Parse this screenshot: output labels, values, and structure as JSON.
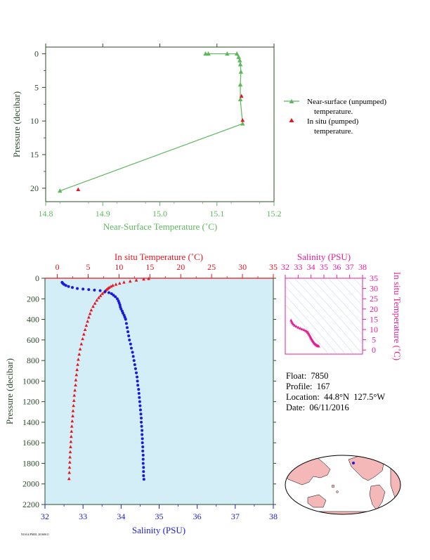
{
  "chart_data": [
    {
      "id": "near-surface",
      "type": "line",
      "xlabel": "Near-Surface Temperature (˚C)",
      "ylabel": "Pressure (decibar)",
      "xlim": [
        14.8,
        15.2
      ],
      "ylim": [
        22,
        -1
      ],
      "x_ticks": [
        "14.8",
        "14.9",
        "15.0",
        "15.1",
        "15.2"
      ],
      "y_ticks": [
        "0",
        "5",
        "10",
        "15",
        "20"
      ],
      "series": [
        {
          "name": "Near-surface (unpumped) temperature.",
          "marker": "triangle",
          "color": "#5cb85c",
          "points": [
            [
              15.08,
              0.0
            ],
            [
              15.085,
              0.0
            ],
            [
              15.118,
              0.0
            ],
            [
              15.135,
              0.0
            ],
            [
              15.138,
              0.5
            ],
            [
              15.14,
              1.0
            ],
            [
              15.141,
              1.6
            ],
            [
              15.142,
              2.7
            ],
            [
              15.141,
              4.6
            ],
            [
              15.141,
              6.8
            ],
            [
              15.145,
              10.4
            ],
            [
              14.825,
              20.4
            ]
          ]
        },
        {
          "name": "In situ (pumped) temperature.",
          "marker": "triangle",
          "color": "#e8141e",
          "points": [
            [
              15.143,
              6.3
            ],
            [
              15.145,
              9.9
            ],
            [
              14.857,
              20.2
            ]
          ]
        }
      ]
    },
    {
      "id": "profile",
      "type": "scatter",
      "x_bottom_label": "Salinity (PSU)",
      "x_top_label": "In situ Temperature (˚C)",
      "ylabel": "Pressure (decibar)",
      "salinity_lim": [
        32,
        38
      ],
      "temperature_lim": [
        -2,
        35
      ],
      "pressure_lim": [
        0,
        2200
      ],
      "salinity_ticks": [
        "32",
        "33",
        "34",
        "35",
        "36",
        "37",
        "38"
      ],
      "temperature_ticks": [
        "0",
        "5",
        "10",
        "15",
        "20",
        "25",
        "30",
        "35"
      ],
      "pressure_ticks": [
        "0",
        "200",
        "400",
        "600",
        "800",
        "1000",
        "1200",
        "1400",
        "1600",
        "1800",
        "2000",
        "2200"
      ],
      "temperature_series": {
        "color": "#e8141e",
        "points": [
          [
            14.8,
            5
          ],
          [
            14.0,
            10
          ],
          [
            12.8,
            20
          ],
          [
            11.8,
            30
          ],
          [
            10.8,
            40
          ],
          [
            10.1,
            50
          ],
          [
            9.5,
            60
          ],
          [
            9.0,
            70
          ],
          [
            8.7,
            80
          ],
          [
            8.4,
            90
          ],
          [
            8.2,
            100
          ],
          [
            8.0,
            110
          ],
          [
            7.8,
            120
          ],
          [
            7.6,
            135
          ],
          [
            7.3,
            150
          ],
          [
            7.0,
            170
          ],
          [
            6.7,
            190
          ],
          [
            6.4,
            215
          ],
          [
            6.1,
            245
          ],
          [
            5.8,
            275
          ],
          [
            5.5,
            310
          ],
          [
            5.3,
            345
          ],
          [
            5.1,
            380
          ],
          [
            4.9,
            420
          ],
          [
            4.7,
            460
          ],
          [
            4.5,
            500
          ],
          [
            4.3,
            545
          ],
          [
            4.1,
            590
          ],
          [
            3.9,
            640
          ],
          [
            3.7,
            690
          ],
          [
            3.55,
            740
          ],
          [
            3.4,
            790
          ],
          [
            3.3,
            840
          ],
          [
            3.2,
            890
          ],
          [
            3.1,
            940
          ],
          [
            3.0,
            990
          ],
          [
            2.95,
            1040
          ],
          [
            2.85,
            1090
          ],
          [
            2.75,
            1140
          ],
          [
            2.7,
            1190
          ],
          [
            2.62,
            1240
          ],
          [
            2.55,
            1290
          ],
          [
            2.5,
            1340
          ],
          [
            2.42,
            1390
          ],
          [
            2.35,
            1440
          ],
          [
            2.3,
            1490
          ],
          [
            2.25,
            1540
          ],
          [
            2.2,
            1590
          ],
          [
            2.15,
            1640
          ],
          [
            2.1,
            1690
          ],
          [
            2.05,
            1740
          ],
          [
            2.02,
            1790
          ],
          [
            1.98,
            1840
          ],
          [
            1.95,
            1890
          ],
          [
            1.9,
            1950
          ]
        ]
      },
      "salinity_series": {
        "color": "#1a1adc",
        "points": [
          [
            32.45,
            40
          ],
          [
            32.47,
            50
          ],
          [
            32.5,
            60
          ],
          [
            32.55,
            70
          ],
          [
            32.62,
            80
          ],
          [
            32.72,
            90
          ],
          [
            32.85,
            100
          ],
          [
            33.0,
            105
          ],
          [
            33.15,
            110
          ],
          [
            33.3,
            115
          ],
          [
            33.45,
            120
          ],
          [
            33.58,
            130
          ],
          [
            33.68,
            140
          ],
          [
            33.75,
            150
          ],
          [
            33.8,
            165
          ],
          [
            33.85,
            180
          ],
          [
            33.9,
            200
          ],
          [
            33.93,
            220
          ],
          [
            33.95,
            240
          ],
          [
            33.97,
            260
          ],
          [
            33.98,
            280
          ],
          [
            34.0,
            300
          ],
          [
            34.03,
            320
          ],
          [
            34.05,
            340
          ],
          [
            34.08,
            360
          ],
          [
            34.1,
            380
          ],
          [
            34.12,
            400
          ],
          [
            34.14,
            440
          ],
          [
            34.16,
            480
          ],
          [
            34.18,
            520
          ],
          [
            34.2,
            560
          ],
          [
            34.22,
            600
          ],
          [
            34.25,
            640
          ],
          [
            34.27,
            680
          ],
          [
            34.3,
            720
          ],
          [
            34.32,
            760
          ],
          [
            34.34,
            800
          ],
          [
            34.36,
            840
          ],
          [
            34.38,
            880
          ],
          [
            34.4,
            920
          ],
          [
            34.42,
            960
          ],
          [
            34.43,
            1000
          ],
          [
            34.44,
            1040
          ],
          [
            34.46,
            1080
          ],
          [
            34.47,
            1120
          ],
          [
            34.48,
            1160
          ],
          [
            34.49,
            1200
          ],
          [
            34.5,
            1240
          ],
          [
            34.51,
            1280
          ],
          [
            34.52,
            1320
          ],
          [
            34.53,
            1360
          ],
          [
            34.53,
            1400
          ],
          [
            34.54,
            1440
          ],
          [
            34.55,
            1480
          ],
          [
            34.55,
            1520
          ],
          [
            34.56,
            1560
          ],
          [
            34.56,
            1600
          ],
          [
            34.57,
            1640
          ],
          [
            34.57,
            1680
          ],
          [
            34.58,
            1720
          ],
          [
            34.58,
            1760
          ],
          [
            34.58,
            1800
          ],
          [
            34.59,
            1840
          ],
          [
            34.59,
            1880
          ],
          [
            34.59,
            1920
          ],
          [
            34.6,
            1955
          ]
        ]
      }
    },
    {
      "id": "ts-diagram",
      "type": "scatter",
      "x_top_label": "Salinity (PSU)",
      "y_right_label": "In situ Temperature (˚C)",
      "xlim": [
        32,
        38
      ],
      "ylim": [
        -2,
        35
      ],
      "x_ticks": [
        "32",
        "33",
        "34",
        "35",
        "36",
        "37",
        "38"
      ],
      "y_ticks": [
        "0",
        "5",
        "10",
        "15",
        "20",
        "25",
        "30",
        "35"
      ],
      "color": "#e61e96",
      "points": [
        [
          32.45,
          14.5
        ],
        [
          32.5,
          13.8
        ],
        [
          32.55,
          13.2
        ],
        [
          32.62,
          12.6
        ],
        [
          32.72,
          12.0
        ],
        [
          32.85,
          11.5
        ],
        [
          33.0,
          11.0
        ],
        [
          33.15,
          10.6
        ],
        [
          33.3,
          10.2
        ],
        [
          33.45,
          9.8
        ],
        [
          33.58,
          9.4
        ],
        [
          33.68,
          9.0
        ],
        [
          33.75,
          8.6
        ],
        [
          33.8,
          8.1
        ],
        [
          33.85,
          7.6
        ],
        [
          33.9,
          7.0
        ],
        [
          33.95,
          6.5
        ],
        [
          33.98,
          6.0
        ],
        [
          34.02,
          5.6
        ],
        [
          34.06,
          5.2
        ],
        [
          34.1,
          4.8
        ],
        [
          34.14,
          4.4
        ],
        [
          34.18,
          4.0
        ],
        [
          34.22,
          3.6
        ],
        [
          34.27,
          3.2
        ],
        [
          34.32,
          2.9
        ],
        [
          34.37,
          2.6
        ],
        [
          34.42,
          2.4
        ],
        [
          34.47,
          2.2
        ],
        [
          34.52,
          2.0
        ],
        [
          34.56,
          1.9
        ],
        [
          34.6,
          1.85
        ]
      ]
    }
  ],
  "float_info": {
    "float_label": "Float:",
    "float_value": "7850",
    "profile_label": "Profile:",
    "profile_value": "167",
    "location_label": "Location:",
    "location_value": "44.8°N  127.5°W",
    "date_label": "Date:",
    "date_value": "06/11/2016"
  },
  "colors": {
    "near_surface": "#5cb85c",
    "in_situ": "#e8141e",
    "salinity": "#1a1adc",
    "ts": "#e61e96",
    "axis_dark": "#2d4a2d",
    "plot_bg": "#d4eef8",
    "map_land": "#f5b8b8",
    "map_ocean": "#ffffff",
    "float_marker": "#1a1adc"
  },
  "footer_tag": "NOAA/PMEL 20160611"
}
